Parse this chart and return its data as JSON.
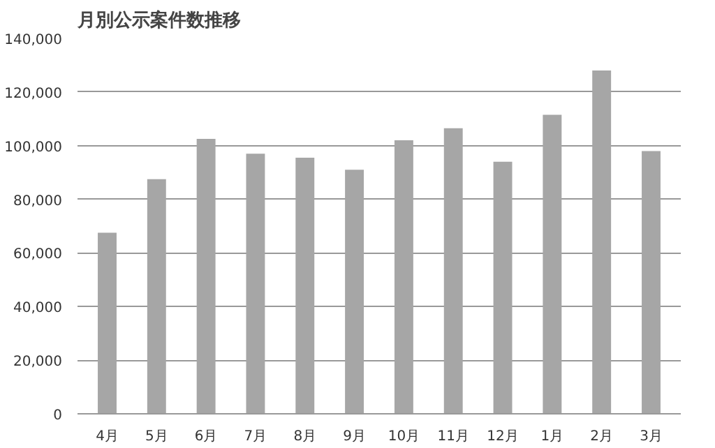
{
  "chart_data": {
    "type": "bar",
    "title": "月別公示案件数推移",
    "categories": [
      "4月",
      "5月",
      "6月",
      "7月",
      "8月",
      "9月",
      "10月",
      "11月",
      "12月",
      "1月",
      "2月",
      "3月"
    ],
    "values": [
      67500,
      87500,
      102500,
      97000,
      95500,
      91000,
      102000,
      106500,
      94000,
      111500,
      128000,
      98000
    ],
    "color": "#a6a6a6",
    "ylim": [
      0,
      140000
    ],
    "yticks": [
      {
        "value": 0,
        "label": "0"
      },
      {
        "value": 20000,
        "label": "20,000"
      },
      {
        "value": 40000,
        "label": "40,000"
      },
      {
        "value": 60000,
        "label": "60,000"
      },
      {
        "value": 80000,
        "label": "80,000"
      },
      {
        "value": 100000,
        "label": "100,000"
      },
      {
        "value": 120000,
        "label": "120,000"
      },
      {
        "value": 140000,
        "label": "140,000"
      }
    ],
    "grid": "y"
  }
}
